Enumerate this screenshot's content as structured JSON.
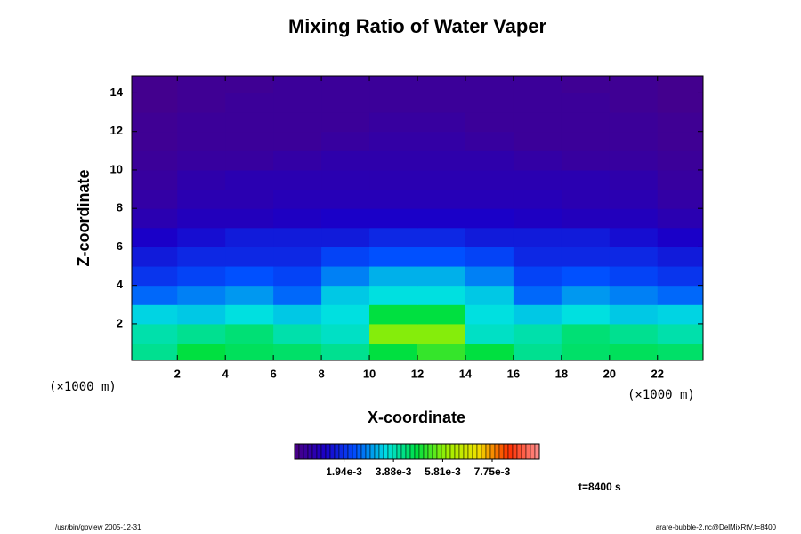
{
  "chart_data": {
    "type": "contour",
    "title": "Mixing Ratio of Water Vaper",
    "xlabel": "X-coordinate",
    "ylabel": "Z-coordinate",
    "x_unit": "(×1000 m)",
    "y_unit": "(×1000 m)",
    "x_edges": [
      0,
      2,
      4,
      6,
      8,
      10,
      12,
      14,
      16,
      18,
      20,
      22,
      24
    ],
    "z_edges": [
      0,
      1,
      2,
      3,
      4,
      5,
      6,
      7,
      8,
      9,
      10,
      11,
      12,
      13,
      14,
      15
    ],
    "values": [
      [
        0.0042,
        0.0048,
        0.0046,
        0.0045,
        0.0042,
        0.0048,
        0.0052,
        0.0048,
        0.0042,
        0.0045,
        0.0046,
        0.0045
      ],
      [
        0.004,
        0.0042,
        0.0044,
        0.004,
        0.0038,
        0.0058,
        0.0058,
        0.0038,
        0.004,
        0.0044,
        0.0042,
        0.004
      ],
      [
        0.0035,
        0.0034,
        0.0036,
        0.0034,
        0.0036,
        0.0048,
        0.0048,
        0.0036,
        0.0034,
        0.0036,
        0.0034,
        0.0035
      ],
      [
        0.0026,
        0.0028,
        0.003,
        0.0026,
        0.0034,
        0.0036,
        0.0036,
        0.0034,
        0.0026,
        0.003,
        0.0028,
        0.0026
      ],
      [
        0.002,
        0.0022,
        0.0024,
        0.0022,
        0.0028,
        0.0032,
        0.0032,
        0.0028,
        0.0022,
        0.0024,
        0.0022,
        0.002
      ],
      [
        0.0016,
        0.0018,
        0.0018,
        0.0018,
        0.0022,
        0.0024,
        0.0024,
        0.0022,
        0.0018,
        0.0018,
        0.0018,
        0.0016
      ],
      [
        0.0012,
        0.0014,
        0.0016,
        0.0016,
        0.0016,
        0.0018,
        0.0018,
        0.0016,
        0.0016,
        0.0016,
        0.0014,
        0.0012
      ],
      [
        0.0008,
        0.001,
        0.001,
        0.0011,
        0.0012,
        0.0012,
        0.0012,
        0.0012,
        0.0011,
        0.001,
        0.001,
        0.0008
      ],
      [
        0.0006,
        0.0008,
        0.0008,
        0.0009,
        0.0009,
        0.0009,
        0.0009,
        0.0009,
        0.0009,
        0.0008,
        0.0008,
        0.0006
      ],
      [
        0.0005,
        0.0007,
        0.0008,
        0.0008,
        0.0008,
        0.0008,
        0.0008,
        0.0008,
        0.0008,
        0.0008,
        0.0007,
        0.0005
      ],
      [
        0.0004,
        0.0005,
        0.0005,
        0.0006,
        0.0007,
        0.0007,
        0.0007,
        0.0007,
        0.0006,
        0.0005,
        0.0005,
        0.0004
      ],
      [
        0.0003,
        0.0004,
        0.0004,
        0.0004,
        0.0005,
        0.0006,
        0.0006,
        0.0005,
        0.0004,
        0.0004,
        0.0004,
        0.0003
      ],
      [
        0.0003,
        0.0004,
        0.0004,
        0.0004,
        0.0004,
        0.0005,
        0.0005,
        0.0004,
        0.0004,
        0.0004,
        0.0004,
        0.0003
      ],
      [
        0.0002,
        0.0003,
        0.0004,
        0.0004,
        0.0004,
        0.0004,
        0.0004,
        0.0004,
        0.0004,
        0.0004,
        0.0003,
        0.0002
      ],
      [
        0.0002,
        0.0003,
        0.0003,
        0.0004,
        0.0004,
        0.0004,
        0.0004,
        0.0004,
        0.0004,
        0.0003,
        0.0003,
        0.0002
      ]
    ],
    "xlim": [
      0.1,
      23.9
    ],
    "ylim": [
      0.1,
      14.9
    ],
    "xticks": [
      2,
      4,
      6,
      8,
      10,
      12,
      14,
      16,
      18,
      20,
      22
    ],
    "yticks": [
      2,
      4,
      6,
      8,
      10,
      12,
      14
    ],
    "colorbar": {
      "lim": [
        0,
        0.0096
      ],
      "ticks": [
        {
          "value": 0.00194,
          "label": "1.94e-3"
        },
        {
          "value": 0.00388,
          "label": "3.88e-3"
        },
        {
          "value": 0.00581,
          "label": "5.81e-3"
        },
        {
          "value": 0.00775,
          "label": "7.75e-3"
        }
      ],
      "colors": [
        "#4b0082",
        "#1a00c8",
        "#0050ff",
        "#00e0e0",
        "#00e040",
        "#a0f000",
        "#f0e000",
        "#ff3000",
        "#ff9090"
      ]
    },
    "annotation": "t=8400 s",
    "footer_left": "/usr/bin/gpview 2005-12-31",
    "footer_right": "arare-bubble-2.nc@DelMixRtV,t=8400"
  }
}
